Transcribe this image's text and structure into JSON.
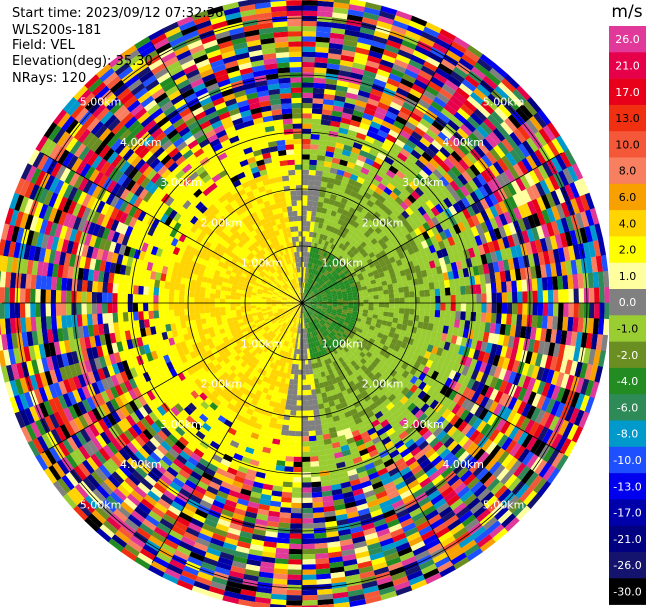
{
  "info": {
    "start_time": "Start time: 2023/09/12 07:32:36",
    "instrument": "WLS200s-181",
    "field": "Field: VEL",
    "elevation": "Elevation(deg): 35.30",
    "nrays": "NRays: 120"
  },
  "chart_data": {
    "type": "heatmap",
    "projection": "polar (PPI)",
    "range_rings_km": [
      1.0,
      2.0,
      3.0,
      4.0,
      5.0
    ],
    "ring_labels": [
      "1.00km",
      "2.00km",
      "3.00km",
      "4.00km",
      "5.00km"
    ],
    "max_range_km": 6.0,
    "radial_spokes_deg": [
      0,
      30,
      60,
      90,
      120,
      150,
      180,
      210,
      240,
      270,
      300,
      330
    ],
    "field": "VEL",
    "colorbar": {
      "unit": "m/s",
      "ticks": [
        "26.0",
        "21.0",
        "17.0",
        "13.0",
        "10.0",
        "8.0",
        "6.0",
        "4.0",
        "2.0",
        "1.0",
        "0.0",
        "-1.0",
        "-2.0",
        "-4.0",
        "-6.0",
        "-8.0",
        "-10.0",
        "-13.0",
        "-17.0",
        "-21.0",
        "-26.0",
        "-30.0"
      ],
      "colors": [
        "#e0399a",
        "#e6004a",
        "#e8001a",
        "#f03010",
        "#f55838",
        "#f88060",
        "#f8a000",
        "#ffd400",
        "#ffff00",
        "#ffffa0",
        "#808080",
        "#9acd32",
        "#6b8e23",
        "#228b22",
        "#2e8b57",
        "#0099cc",
        "#1e50ff",
        "#0000ee",
        "#0000aa",
        "#000080",
        "#14146e",
        "#000000"
      ]
    },
    "pattern": "near range (< 2 km): positive (yellow/orange) to the west, negative (greens) to the east with a grey zero band; beyond ~2.5 km mostly noise"
  }
}
